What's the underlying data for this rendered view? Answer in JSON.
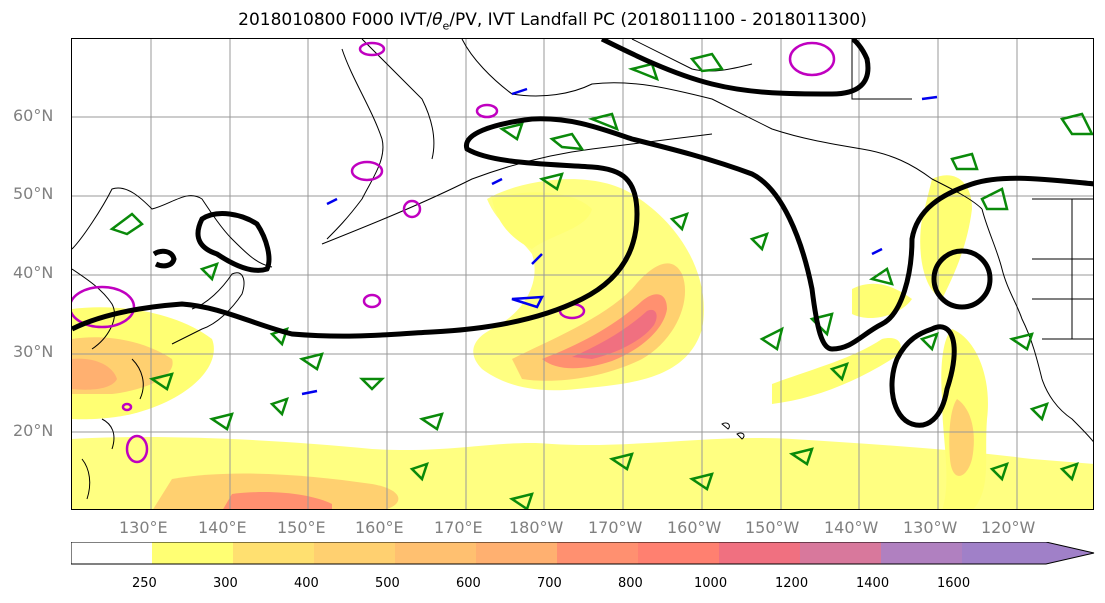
{
  "title": {
    "prefix": "2018010800 F000 IVT/",
    "theta": "θ",
    "e": "e",
    "suffix": "/PV, IVT Landfall PC (2018011100 - 2018011300)"
  },
  "lat_labels": [
    "60°N",
    "50°N",
    "40°N",
    "30°N",
    "20°N"
  ],
  "lon_labels": [
    "130°E",
    "140°E",
    "150°E",
    "160°E",
    "170°E",
    "180°W",
    "170°W",
    "160°W",
    "150°W",
    "140°W",
    "130°W",
    "120°W"
  ],
  "colorbar": {
    "ticks": [
      "250",
      "300",
      "400",
      "500",
      "600",
      "700",
      "800",
      "1000",
      "1200",
      "1400",
      "1600"
    ],
    "colors": [
      "#ffffff",
      "#ffff73",
      "#ffe070",
      "#ffd070",
      "#ffc070",
      "#ffb070",
      "#ff9070",
      "#ff8070",
      "#f07080",
      "#d8789c",
      "#b080c0",
      "#a080c8"
    ]
  },
  "colors": {
    "ivt_contour": "#000000",
    "theta_e": "#0a8a0a",
    "pv": "#c000c0",
    "pv_neg": "#0000ee",
    "grid": "#999999",
    "coast": "#000000"
  }
}
